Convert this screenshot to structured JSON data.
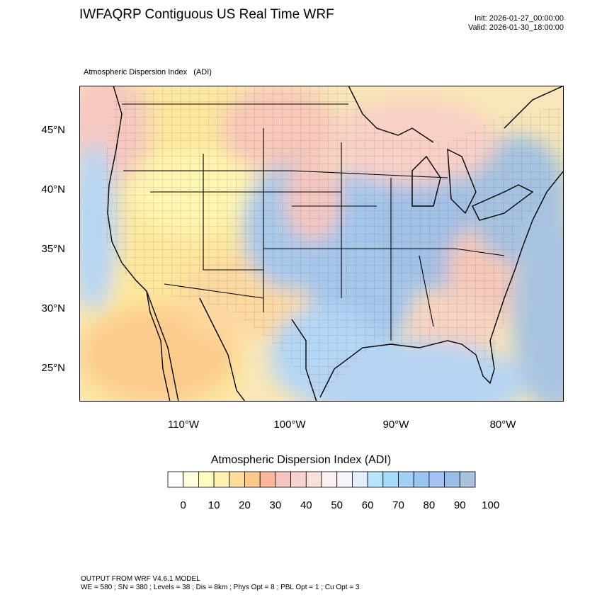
{
  "header": {
    "title": "IWFAQRP Contiguous US Real Time WRF",
    "init": "Init: 2026-01-27_00:00:00",
    "valid": "Valid: 2026-01-30_18:00:00"
  },
  "map": {
    "variable_label": "Atmospheric Dispersion Index   (ADI)",
    "lat_labels": [
      "45°N",
      "40°N",
      "35°N",
      "30°N",
      "25°N"
    ],
    "lon_labels": [
      "110°W",
      "100°W",
      "90°W",
      "80°W"
    ]
  },
  "colorbar": {
    "title": "Atmospheric Dispersion Index  (ADI)",
    "tick_labels": [
      "0",
      "10",
      "20",
      "30",
      "40",
      "50",
      "60",
      "70",
      "80",
      "90",
      "100"
    ],
    "colors": [
      "#ffffff",
      "#fffde0",
      "#fffcc0",
      "#fff1b3",
      "#fedc9a",
      "#fcc88a",
      "#f9b59e",
      "#f5c4be",
      "#f6d3cd",
      "#f8e0da",
      "#fdf1f0",
      "#f6f4fb",
      "#e3efff",
      "#b8e5fc",
      "#a6dbf7",
      "#a1cff6",
      "#97c4f0",
      "#a4c2f6",
      "#9cbcea",
      "#a8c2dc"
    ]
  },
  "footer": {
    "line1": "OUTPUT FROM WRF V4.6.1 MODEL",
    "line2": "WE = 580 ; SN = 380 ; Levels = 38 ; Dis = 8km ; Phys Opt = 8 ; PBL Opt = 1 ; Cu Opt = 3"
  }
}
